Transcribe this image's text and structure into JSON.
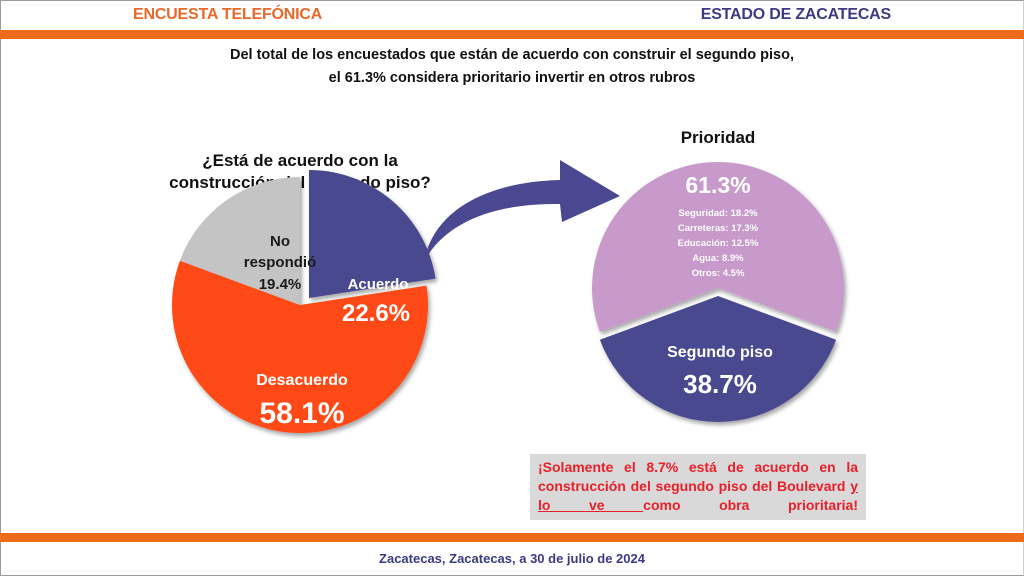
{
  "header": {
    "left_title": "ENCUESTA TELEFÓNICA",
    "right_title": "ESTADO DE ZACATECAS"
  },
  "subtitle": {
    "line1": "Del total de los encuestados que están de acuerdo con construir el segundo piso,",
    "line2": "el 61.3% considera prioritario invertir en otros rubros"
  },
  "colors": {
    "orange_bar": "#ee6b1c",
    "navy": "#3d3a84",
    "acuerdo": "#4a4890",
    "desacuerdo": "#ff4a12",
    "no_respondio": "#c4c4c4",
    "prioridad_otros": "#c89acb",
    "segundo_piso": "#4a4890",
    "callout_text": "#e8202a"
  },
  "chart_data": [
    {
      "type": "pie",
      "title_line1": "¿Está de acuerdo con la",
      "title_line2": "construcción del segundo piso?",
      "slices": [
        {
          "key": "acuerdo",
          "label": "Acuerdo",
          "value": 22.6,
          "value_label": "22.6%",
          "color": "#4a4890",
          "exploded": true
        },
        {
          "key": "desacuerdo",
          "label": "Desacuerdo",
          "value": 58.1,
          "value_label": "58.1%",
          "color": "#ff4a12",
          "exploded": false
        },
        {
          "key": "no_respondio",
          "label_line1": "No",
          "label_line2": "respondió",
          "value": 19.4,
          "value_label": "19.4%",
          "color": "#c4c4c4",
          "exploded": false
        }
      ]
    },
    {
      "type": "pie",
      "title": "Prioridad",
      "slices": [
        {
          "key": "otros_rubros",
          "value": 61.3,
          "value_label": "61.3%",
          "color": "#c89acb",
          "breakdown": [
            "Seguridad: 18.2%",
            "Carreteras: 17.3%",
            "Educación: 12.5%",
            "Agua: 8.9%",
            "Otros: 4.5%"
          ]
        },
        {
          "key": "segundo_piso",
          "label": "Segundo piso",
          "value": 38.7,
          "value_label": "38.7%",
          "color": "#4a4890"
        }
      ]
    }
  ],
  "callout": {
    "part1": "¡Solamente el 8.7% está de acuerdo en la construcción del segundo piso del Boulevard ",
    "underlined": "y lo ve ",
    "part2": "como obra prioritaria!"
  },
  "footer": "Zacatecas, Zacatecas, a 30 de julio de 2024"
}
